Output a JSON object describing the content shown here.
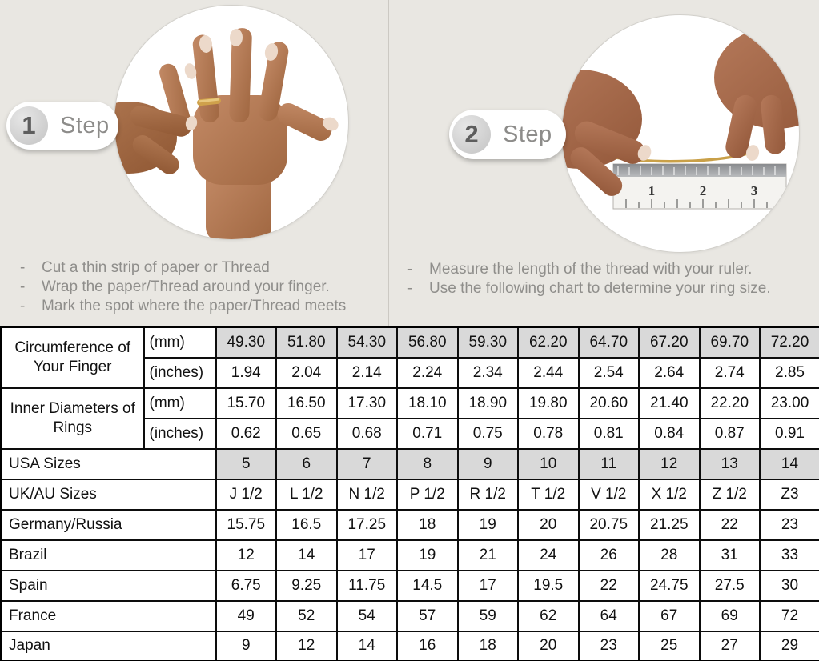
{
  "steps": [
    {
      "number": "1",
      "label": "Step",
      "instructions": [
        "Cut a thin strip of paper or Thread",
        "Wrap the paper/Thread around your finger.",
        "Mark the spot where the paper/Thread meets"
      ]
    },
    {
      "number": "2",
      "label": "Step",
      "instructions": [
        "Measure the length of the thread with your ruler.",
        "Use the following chart to determine your ring size."
      ]
    }
  ],
  "table": {
    "groups": [
      {
        "label": "Circumference of Your Finger",
        "rows": [
          {
            "unit": "(mm)",
            "shaded": true,
            "values": [
              "49.30",
              "51.80",
              "54.30",
              "56.80",
              "59.30",
              "62.20",
              "64.70",
              "67.20",
              "69.70",
              "72.20"
            ]
          },
          {
            "unit": "(inches)",
            "shaded": false,
            "values": [
              "1.94",
              "2.04",
              "2.14",
              "2.24",
              "2.34",
              "2.44",
              "2.54",
              "2.64",
              "2.74",
              "2.85"
            ]
          }
        ]
      },
      {
        "label": "Inner Diameters of Rings",
        "rows": [
          {
            "unit": "(mm)",
            "shaded": false,
            "values": [
              "15.70",
              "16.50",
              "17.30",
              "18.10",
              "18.90",
              "19.80",
              "20.60",
              "21.40",
              "22.20",
              "23.00"
            ]
          },
          {
            "unit": "(inches)",
            "shaded": false,
            "values": [
              "0.62",
              "0.65",
              "0.68",
              "0.71",
              "0.75",
              "0.78",
              "0.81",
              "0.84",
              "0.87",
              "0.91"
            ]
          }
        ]
      }
    ],
    "size_rows": [
      {
        "label": "USA Sizes",
        "shaded": true,
        "values": [
          "5",
          "6",
          "7",
          "8",
          "9",
          "10",
          "11",
          "12",
          "13",
          "14"
        ]
      },
      {
        "label": "UK/AU Sizes",
        "shaded": false,
        "values": [
          "J 1/2",
          "L 1/2",
          "N 1/2",
          "P 1/2",
          "R 1/2",
          "T 1/2",
          "V 1/2",
          "X 1/2",
          "Z 1/2",
          "Z3"
        ]
      },
      {
        "label": "Germany/Russia",
        "shaded": false,
        "values": [
          "15.75",
          "16.5",
          "17.25",
          "18",
          "19",
          "20",
          "20.75",
          "21.25",
          "22",
          "23"
        ]
      },
      {
        "label": "Brazil",
        "shaded": false,
        "values": [
          "12",
          "14",
          "17",
          "19",
          "21",
          "24",
          "26",
          "28",
          "31",
          "33"
        ]
      },
      {
        "label": "Spain",
        "shaded": false,
        "values": [
          "6.75",
          "9.25",
          "11.75",
          "14.5",
          "17",
          "19.5",
          "22",
          "24.75",
          "27.5",
          "30"
        ]
      },
      {
        "label": "France",
        "shaded": false,
        "values": [
          "49",
          "52",
          "54",
          "57",
          "59",
          "62",
          "64",
          "67",
          "69",
          "72"
        ]
      },
      {
        "label": "Japan",
        "shaded": false,
        "values": [
          "9",
          "12",
          "14",
          "16",
          "18",
          "20",
          "23",
          "25",
          "27",
          "29"
        ]
      }
    ]
  },
  "colors": {
    "background": "#e9e7e2",
    "shaded_cell": "#d9d9d9",
    "table_border": "#0d0d0d",
    "instruction_text": "#8f8e8b",
    "gold_thread": "#c9a048"
  }
}
